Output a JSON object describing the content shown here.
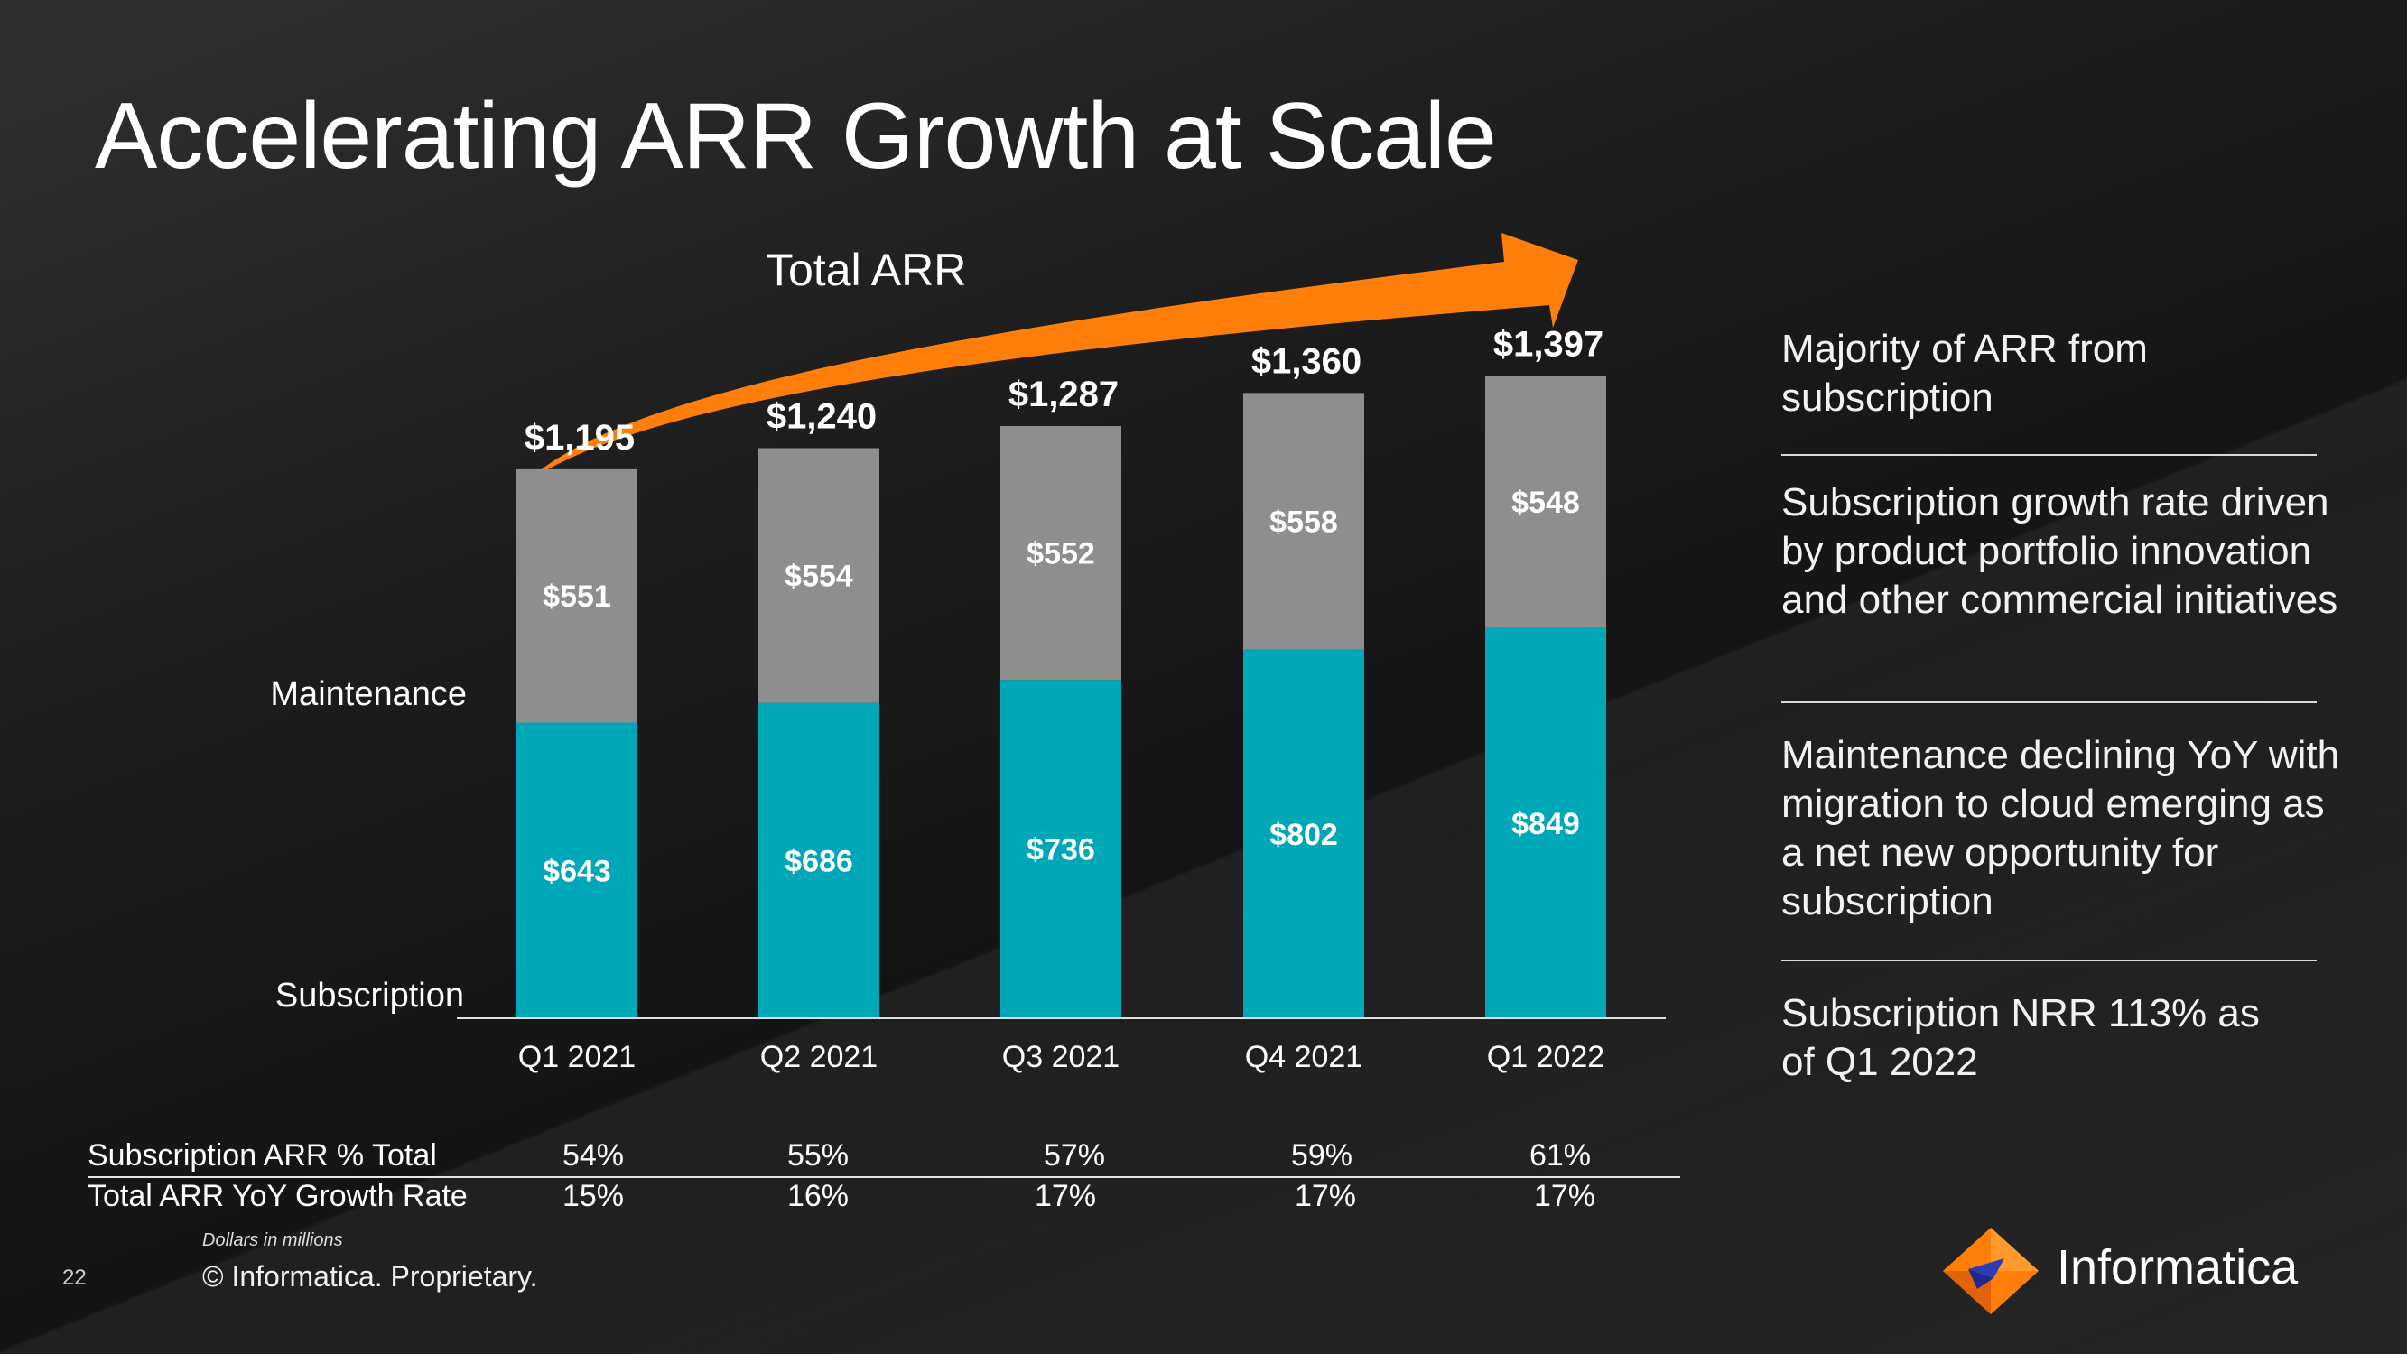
{
  "title": "Accelerating ARR Growth at Scale",
  "arrow_label": "Total ARR",
  "colors": {
    "subscription": "#00a7b7",
    "maintenance": "#8e8e8e",
    "arrow": "#ff7f0a",
    "axis": "#e0e0e0"
  },
  "chart_data": {
    "type": "bar",
    "stacked": true,
    "categories": [
      "Q1 2021",
      "Q2 2021",
      "Q3 2021",
      "Q4 2021",
      "Q1 2022"
    ],
    "series": [
      {
        "name": "Subscription",
        "values": [
          643,
          686,
          736,
          802,
          849
        ],
        "labels": [
          "$643",
          "$686",
          "$736",
          "$802",
          "$849"
        ]
      },
      {
        "name": "Maintenance",
        "values": [
          551,
          554,
          552,
          558,
          548
        ],
        "labels": [
          "$551",
          "$554",
          "$552",
          "$558",
          "$548"
        ]
      }
    ],
    "totals": [
      1195,
      1240,
      1287,
      1360,
      1397
    ],
    "total_labels": [
      "$1,195",
      "$1,240",
      "$1,287",
      "$1,360",
      "$1,397"
    ],
    "ylim": [
      0,
      1500
    ],
    "grid": false,
    "units": "Dollars in millions"
  },
  "metrics": {
    "rows": [
      {
        "label": "Subscription ARR % Total",
        "values": [
          "54%",
          "55%",
          "57%",
          "59%",
          "61%"
        ]
      },
      {
        "label": "Total ARR YoY Growth Rate",
        "values": [
          "15%",
          "16%",
          "17%",
          "17%",
          "17%"
        ]
      }
    ]
  },
  "sidebar": {
    "points": [
      "Majority of ARR from subscription",
      "Subscription growth rate driven by product portfolio innovation and other commercial initiatives",
      "Maintenance declining YoY with migration to cloud emerging as a net new opportunity for subscription",
      "Subscription NRR 113% as of Q1 2022"
    ]
  },
  "footer": {
    "footnote": "Dollars in millions",
    "page_number": "22",
    "copyright": "© Informatica. Proprietary.",
    "logo_text": "Informatica"
  }
}
